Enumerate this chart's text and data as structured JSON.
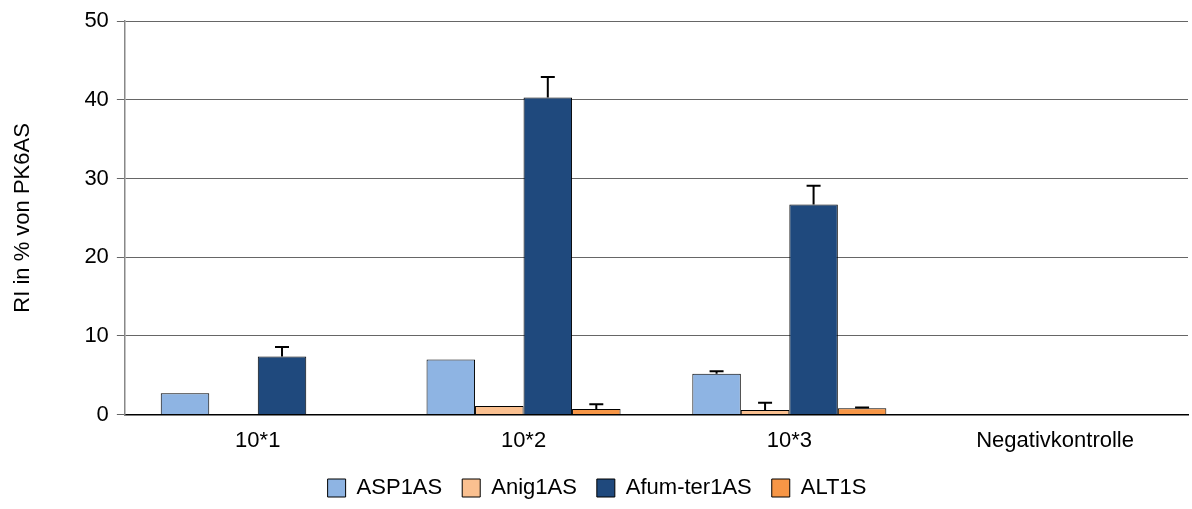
{
  "chart_data": {
    "type": "bar",
    "ylabel": "RI in % von PK6AS",
    "categories": [
      "10*1",
      "10*2",
      "10*3",
      "Negativkontrolle"
    ],
    "series": [
      {
        "name": "ASP1AS",
        "color": "#8eb4e3",
        "values": [
          2.7,
          7.0,
          5.2,
          null
        ],
        "errors": [
          null,
          null,
          [
            5.2,
            5.5
          ],
          null
        ]
      },
      {
        "name": "Anig1AS",
        "color": "#fac090",
        "values": [
          null,
          1.1,
          0.6,
          null
        ],
        "errors": [
          null,
          null,
          [
            0.6,
            1.5
          ],
          null
        ]
      },
      {
        "name": "Afum-ter1AS",
        "color": "#1f497d",
        "values": [
          7.4,
          40.3,
          26.7,
          null
        ],
        "errors": [
          [
            7.4,
            8.6
          ],
          [
            40.3,
            42.9
          ],
          [
            26.7,
            29.1
          ],
          null
        ]
      },
      {
        "name": "ALT1S",
        "color": "#f79646",
        "values": [
          null,
          0.7,
          0.8,
          null
        ],
        "errors": [
          null,
          [
            0.7,
            1.3
          ],
          [
            0.8,
            0.9
          ],
          null
        ]
      }
    ],
    "ylim": [
      0,
      50
    ],
    "yticks": [
      0,
      10,
      20,
      30,
      40,
      50
    ],
    "grid": "y",
    "legend": "bottom"
  }
}
